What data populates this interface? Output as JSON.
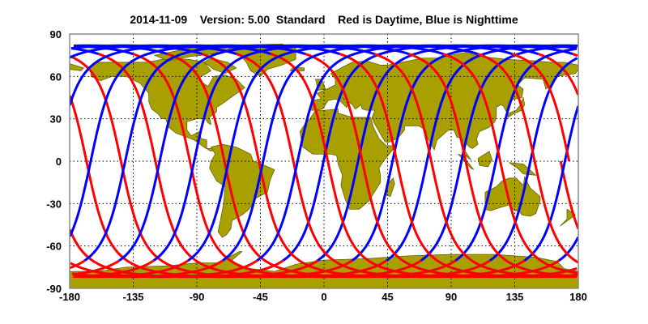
{
  "chart_data": {
    "type": "line",
    "title": "2014-11-09    Version: 5.00  Standard    Red is Daytime, Blue is Nighttime",
    "xlabel": "",
    "ylabel": "",
    "xlim": [
      -180,
      180
    ],
    "ylim": [
      -90,
      90
    ],
    "x_ticks": [
      "-180",
      "-135",
      "-90",
      "-45",
      "0",
      "45",
      "90",
      "135",
      "180"
    ],
    "y_ticks": [
      "90",
      "60",
      "30",
      "0",
      "-30",
      "-60",
      "-90"
    ],
    "grid": true,
    "background": "world map",
    "colors": {
      "daytime": "#ff0000",
      "nighttime": "#0000ff",
      "land": "#a8a000",
      "coast": "#5a5400"
    },
    "tracks": {
      "description_legend": "Red is Daytime, Blue is Nighttime",
      "daytime_equator_crossings_lon": [
        -168.1,
        -143.7,
        -119.3,
        -94.9,
        -70.5,
        -46.1,
        -21.7,
        2.7,
        27.1,
        51.5,
        75.9,
        100.3,
        124.7,
        149.1,
        173.5
      ],
      "nighttime_equator_crossings_lon": [
        -164.7,
        -140.8,
        -115.0,
        -91.2,
        -66.8,
        -42.4,
        -18.0,
        6.4,
        30.8,
        55.2,
        79.6,
        104.0,
        128.4,
        152.8,
        177.2
      ],
      "max_latitude": 81.8,
      "date": "2014-11-09"
    }
  }
}
